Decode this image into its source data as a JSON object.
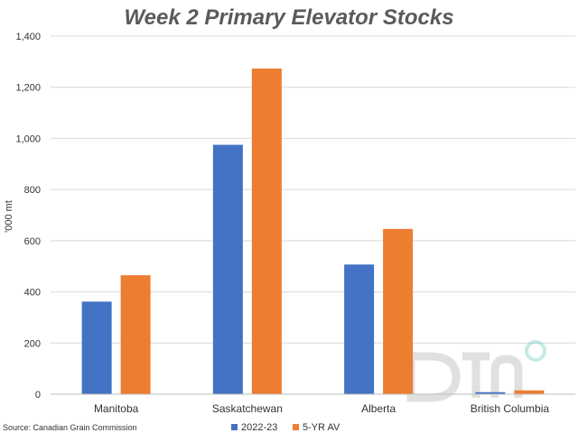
{
  "chart_data": {
    "type": "bar",
    "title": "Week 2 Primary Elevator Stocks",
    "ylabel": "'000 mt",
    "xlabel": "",
    "categories": [
      "Manitoba",
      "Saskatchewan",
      "Alberta",
      "British Columbia"
    ],
    "series": [
      {
        "name": "2022-23",
        "values": [
          362,
          975,
          507,
          8
        ],
        "color": "#4472c4"
      },
      {
        "name": "5-YR AV",
        "values": [
          465,
          1273,
          646,
          15
        ],
        "color": "#ed7d31"
      }
    ],
    "ylim": [
      0,
      1400
    ],
    "yticks": [
      0,
      200,
      400,
      600,
      800,
      1000,
      1200,
      1400
    ],
    "ytick_labels": [
      "0",
      "200",
      "400",
      "600",
      "800",
      "1,000",
      "1,200",
      "1,400"
    ],
    "grid": true,
    "legend_position": "bottom"
  },
  "source": "Source: Canadian Grain Commission",
  "watermark": {
    "text": "DTN",
    "icon": "dtn-logo"
  }
}
